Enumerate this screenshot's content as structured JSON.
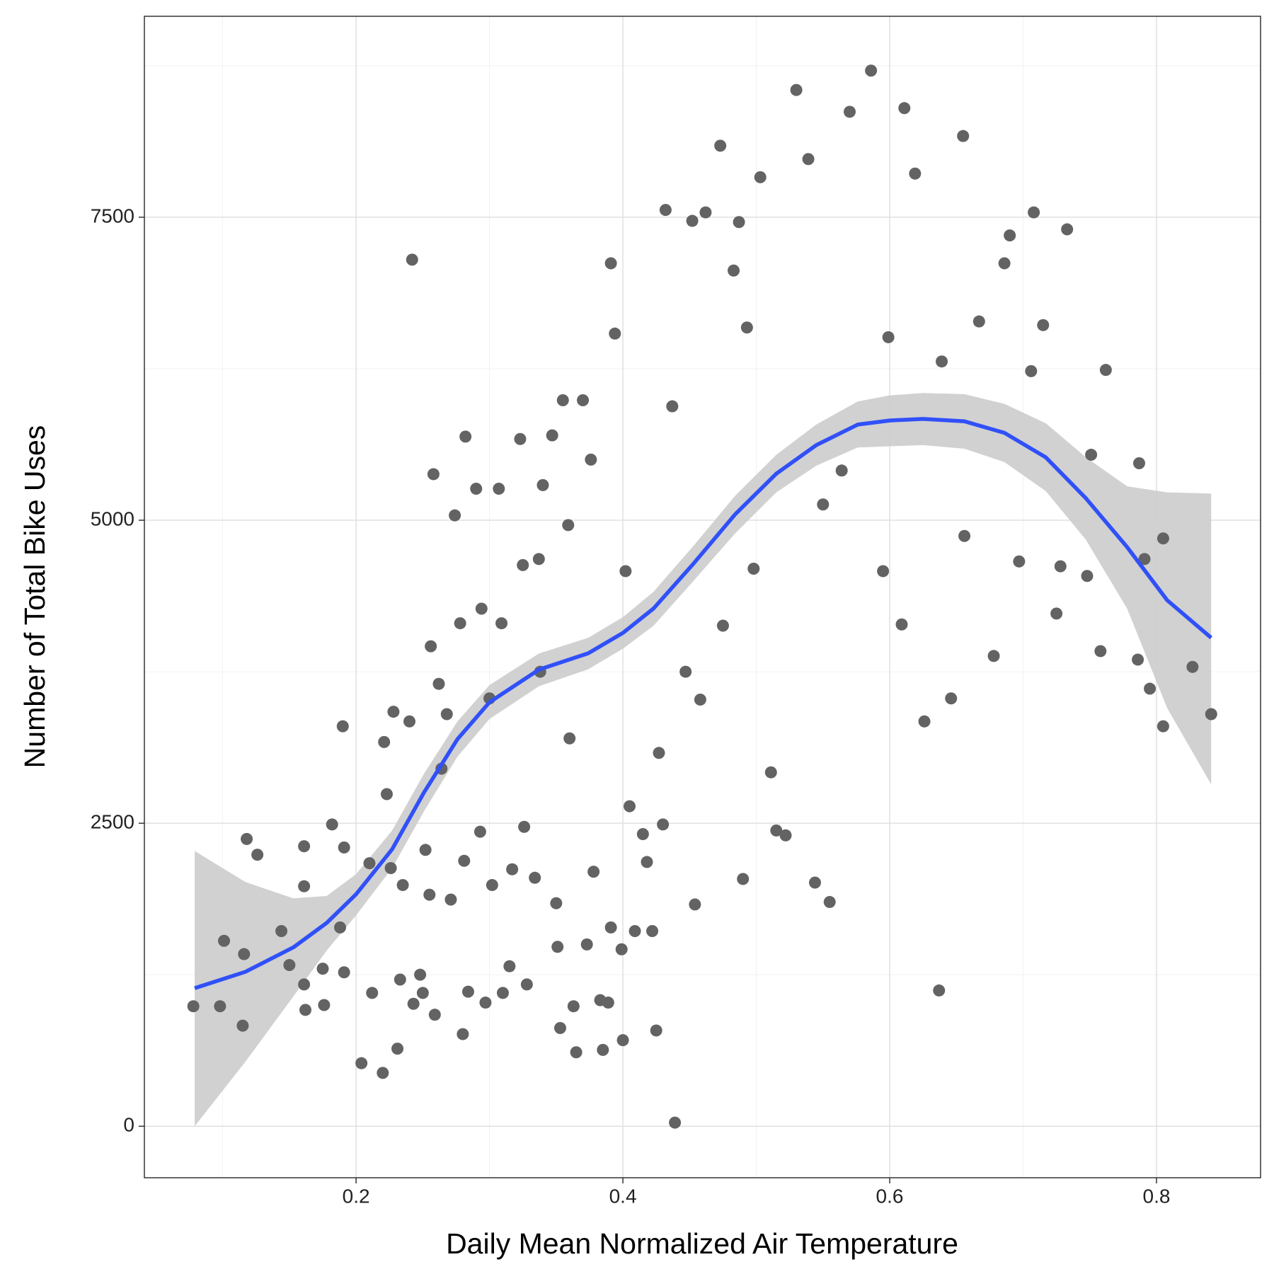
{
  "chart_data": {
    "type": "scatter",
    "x_label": "Daily Mean Normalized Air Temperature",
    "y_label": "Number of Total Bike Uses",
    "xlim": [
      0.0413,
      0.878
    ],
    "ylim": [
      -425,
      9158
    ],
    "xticks": [
      0.2,
      0.4,
      0.6,
      0.8
    ],
    "yticks": [
      0,
      2500,
      5000,
      7500
    ],
    "grid": true,
    "minor_grid": true,
    "color": "#636363",
    "x": [
      0.078,
      0.098,
      0.101,
      0.115,
      0.116,
      0.118,
      0.126,
      0.144,
      0.15,
      0.161,
      0.161,
      0.161,
      0.162,
      0.175,
      0.176,
      0.182,
      0.188,
      0.19,
      0.191,
      0.191,
      0.204,
      0.21,
      0.212,
      0.22,
      0.221,
      0.223,
      0.226,
      0.228,
      0.231,
      0.233,
      0.235,
      0.24,
      0.242,
      0.243,
      0.248,
      0.25,
      0.252,
      0.255,
      0.256,
      0.258,
      0.259,
      0.262,
      0.264,
      0.268,
      0.271,
      0.274,
      0.278,
      0.28,
      0.281,
      0.282,
      0.284,
      0.29,
      0.293,
      0.294,
      0.297,
      0.3,
      0.302,
      0.307,
      0.309,
      0.31,
      0.315,
      0.317,
      0.323,
      0.325,
      0.326,
      0.328,
      0.334,
      0.337,
      0.338,
      0.34,
      0.347,
      0.35,
      0.351,
      0.353,
      0.355,
      0.359,
      0.36,
      0.363,
      0.365,
      0.37,
      0.373,
      0.376,
      0.378,
      0.383,
      0.385,
      0.389,
      0.391,
      0.391,
      0.394,
      0.399,
      0.4,
      0.402,
      0.405,
      0.409,
      0.415,
      0.418,
      0.422,
      0.425,
      0.427,
      0.43,
      0.432,
      0.437,
      0.439,
      0.447,
      0.452,
      0.454,
      0.458,
      0.462,
      0.473,
      0.475,
      0.483,
      0.487,
      0.49,
      0.493,
      0.498,
      0.503,
      0.511,
      0.515,
      0.522,
      0.53,
      0.539,
      0.544,
      0.55,
      0.555,
      0.564,
      0.57,
      0.586,
      0.595,
      0.599,
      0.609,
      0.611,
      0.619,
      0.626,
      0.637,
      0.639,
      0.646,
      0.655,
      0.656,
      0.667,
      0.678,
      0.686,
      0.69,
      0.697,
      0.706,
      0.708,
      0.715,
      0.725,
      0.728,
      0.733,
      0.748,
      0.751,
      0.758,
      0.762,
      0.787,
      0.786,
      0.791,
      0.795,
      0.805,
      0.805,
      0.827,
      0.841
    ],
    "values": [
      990,
      990,
      1530,
      830,
      1420,
      2370,
      2240,
      1610,
      1330,
      2310,
      1980,
      1170,
      960,
      1300,
      1000,
      2490,
      1640,
      3300,
      2300,
      1270,
      520,
      2170,
      1100,
      440,
      3170,
      2740,
      2130,
      3420,
      640,
      1210,
      1990,
      3340,
      7150,
      1010,
      1250,
      1100,
      2280,
      1910,
      3960,
      5380,
      920,
      3650,
      2950,
      3400,
      1870,
      5040,
      4150,
      760,
      2190,
      5690,
      1110,
      5260,
      2430,
      4270,
      1020,
      3530,
      1990,
      5260,
      4150,
      1100,
      1320,
      2120,
      5670,
      4630,
      2470,
      1170,
      2050,
      4680,
      3750,
      5290,
      5700,
      1840,
      1480,
      810,
      5990,
      4960,
      3200,
      990,
      610,
      5990,
      1500,
      5500,
      2100,
      1040,
      630,
      1020,
      7120,
      1640,
      6540,
      1460,
      710,
      4580,
      2640,
      1610,
      2410,
      2180,
      1610,
      790,
      3080,
      2490,
      7560,
      5940,
      30,
      3750,
      7470,
      1830,
      3520,
      7540,
      8090,
      4130,
      7060,
      7460,
      2040,
      6590,
      4600,
      7830,
      2920,
      2440,
      2400,
      8550,
      7980,
      2010,
      5130,
      1850,
      5410,
      8370,
      8710,
      4580,
      6510,
      4140,
      8400,
      7860,
      3340,
      1120,
      6310,
      3530,
      8170,
      4870,
      6640,
      3880,
      7120,
      7350,
      4660,
      6230,
      7540,
      6610,
      4230,
      4620,
      7400,
      4540,
      5540,
      3920,
      6240,
      5470,
      3850,
      4680,
      3610,
      4850,
      3300,
      3790,
      3400
    ],
    "smooth": {
      "color": "#3050f8",
      "band_color": "#cccccc",
      "x": [
        0.079,
        0.117,
        0.153,
        0.178,
        0.2,
        0.227,
        0.251,
        0.276,
        0.3,
        0.337,
        0.374,
        0.4,
        0.423,
        0.453,
        0.484,
        0.515,
        0.545,
        0.576,
        0.6,
        0.625,
        0.656,
        0.686,
        0.717,
        0.747,
        0.778,
        0.808,
        0.841
      ],
      "values": [
        1139,
        1274,
        1476,
        1678,
        1914,
        2285,
        2756,
        3194,
        3498,
        3767,
        3902,
        4070,
        4272,
        4643,
        5047,
        5384,
        5620,
        5789,
        5823,
        5836,
        5816,
        5721,
        5519,
        5182,
        4778,
        4340,
        4030
      ],
      "lower": [
        0,
        532,
        1071,
        1450,
        1740,
        2130,
        2600,
        3050,
        3360,
        3630,
        3770,
        3940,
        4130,
        4500,
        4890,
        5230,
        5450,
        5600,
        5610,
        5620,
        5590,
        5480,
        5240,
        4840,
        4270,
        3450,
        2820
      ],
      "upper": [
        2271,
        2015,
        1880,
        1900,
        2080,
        2440,
        2910,
        3340,
        3640,
        3900,
        4030,
        4200,
        4410,
        4790,
        5200,
        5540,
        5790,
        5980,
        6030,
        6050,
        6040,
        5960,
        5800,
        5520,
        5280,
        5230,
        5220
      ]
    }
  }
}
